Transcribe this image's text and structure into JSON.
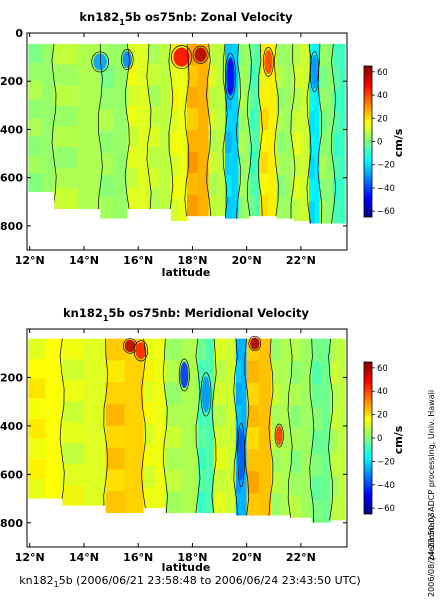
{
  "chart_data": [
    {
      "type": "heatmap",
      "title_main": "kn182",
      "title_sub": "1",
      "title_rest": "5b os75nb: Zonal Velocity",
      "xlabel": "latitude",
      "ylabel": "",
      "xlim": [
        11.9,
        23.7
      ],
      "ylim": [
        900,
        0
      ],
      "x_ticks": [
        12,
        14,
        16,
        18,
        20,
        22
      ],
      "x_tick_labels": [
        "12°N",
        "14°N",
        "16°N",
        "18°N",
        "20°N",
        "22°N"
      ],
      "y_ticks": [
        0,
        200,
        400,
        600,
        800
      ],
      "y_tick_labels": [
        "0",
        "200",
        "400",
        "600",
        "800"
      ],
      "colorbar": {
        "label": "cm/s",
        "range": [
          -65,
          65
        ],
        "ticks": [
          -60,
          -40,
          -20,
          0,
          20,
          40,
          60
        ],
        "tick_labels": [
          "−60",
          "−40",
          "−20",
          "0",
          "20",
          "40",
          "60"
        ]
      },
      "contour_levels": [
        0
      ],
      "bands": [
        {
          "lat_start": 11.95,
          "lat_end": 12.9,
          "value": 3,
          "depth_max": 660
        },
        {
          "lat_start": 12.9,
          "lat_end": 14.6,
          "value": 6,
          "depth_max": 730
        },
        {
          "lat_start": 14.6,
          "lat_end": 15.6,
          "value": 3,
          "depth_max": 770
        },
        {
          "lat_start": 15.6,
          "lat_end": 16.4,
          "value": 12,
          "depth_max": 730
        },
        {
          "lat_start": 16.4,
          "lat_end": 17.2,
          "value": 8,
          "depth_max": 730
        },
        {
          "lat_start": 17.2,
          "lat_end": 17.8,
          "value": 14,
          "depth_max": 780
        },
        {
          "lat_start": 17.8,
          "lat_end": 18.6,
          "value": 26,
          "depth_max": 760
        },
        {
          "lat_start": 18.6,
          "lat_end": 19.2,
          "value": 8,
          "depth_max": 760
        },
        {
          "lat_start": 19.2,
          "lat_end": 19.7,
          "value": -22,
          "depth_max": 770
        },
        {
          "lat_start": 19.7,
          "lat_end": 20.1,
          "value": 4,
          "depth_max": 770
        },
        {
          "lat_start": 20.1,
          "lat_end": 20.5,
          "value": -6,
          "depth_max": 760
        },
        {
          "lat_start": 20.5,
          "lat_end": 21.1,
          "value": 18,
          "depth_max": 760
        },
        {
          "lat_start": 21.1,
          "lat_end": 21.7,
          "value": 4,
          "depth_max": 770
        },
        {
          "lat_start": 21.7,
          "lat_end": 22.3,
          "value": 10,
          "depth_max": 780
        },
        {
          "lat_start": 22.3,
          "lat_end": 22.7,
          "value": -18,
          "depth_max": 790
        },
        {
          "lat_start": 22.7,
          "lat_end": 23.2,
          "value": 2,
          "depth_max": 790
        },
        {
          "lat_start": 23.2,
          "lat_end": 23.65,
          "value": -8,
          "depth_max": 790
        }
      ],
      "features": [
        {
          "lat": 14.6,
          "depth": 120,
          "value": -28,
          "lat_w": 0.5,
          "depth_h": 70
        },
        {
          "lat": 15.6,
          "depth": 110,
          "value": -32,
          "lat_w": 0.35,
          "depth_h": 70
        },
        {
          "lat": 17.6,
          "depth": 100,
          "value": 48,
          "lat_w": 0.6,
          "depth_h": 80
        },
        {
          "lat": 18.3,
          "depth": 90,
          "value": 58,
          "lat_w": 0.45,
          "depth_h": 60
        },
        {
          "lat": 19.4,
          "depth": 180,
          "value": -50,
          "lat_w": 0.3,
          "depth_h": 160
        },
        {
          "lat": 20.8,
          "depth": 120,
          "value": 40,
          "lat_w": 0.3,
          "depth_h": 100
        },
        {
          "lat": 22.5,
          "depth": 160,
          "value": -30,
          "lat_w": 0.25,
          "depth_h": 140
        }
      ]
    },
    {
      "type": "heatmap",
      "title_main": "kn182",
      "title_sub": "1",
      "title_rest": "5b os75nb: Meridional Velocity",
      "xlabel": "latitude",
      "ylabel": "",
      "xlim": [
        11.9,
        23.7
      ],
      "ylim": [
        900,
        0
      ],
      "x_ticks": [
        12,
        14,
        16,
        18,
        20,
        22
      ],
      "x_tick_labels": [
        "12°N",
        "14°N",
        "16°N",
        "18°N",
        "20°N",
        "22°N"
      ],
      "y_ticks": [
        200,
        400,
        600,
        800
      ],
      "y_tick_labels": [
        "200",
        "400",
        "600",
        "800"
      ],
      "colorbar": {
        "label": "cm/s",
        "range": [
          -65,
          65
        ],
        "ticks": [
          -60,
          -40,
          -20,
          0,
          20,
          40,
          60
        ],
        "tick_labels": [
          "−60",
          "−40",
          "−20",
          "0",
          "20",
          "40",
          "60"
        ]
      },
      "contour_levels": [
        0
      ],
      "bands": [
        {
          "lat_start": 11.95,
          "lat_end": 13.2,
          "value": 16,
          "depth_max": 700
        },
        {
          "lat_start": 13.2,
          "lat_end": 14.8,
          "value": 12,
          "depth_max": 730
        },
        {
          "lat_start": 14.8,
          "lat_end": 16.2,
          "value": 22,
          "depth_max": 760
        },
        {
          "lat_start": 16.2,
          "lat_end": 17.0,
          "value": 14,
          "depth_max": 740
        },
        {
          "lat_start": 17.0,
          "lat_end": 18.2,
          "value": 6,
          "depth_max": 760
        },
        {
          "lat_start": 18.2,
          "lat_end": 18.8,
          "value": -6,
          "depth_max": 760
        },
        {
          "lat_start": 18.8,
          "lat_end": 19.6,
          "value": 10,
          "depth_max": 760
        },
        {
          "lat_start": 19.6,
          "lat_end": 20.0,
          "value": -26,
          "depth_max": 770
        },
        {
          "lat_start": 20.0,
          "lat_end": 20.9,
          "value": 24,
          "depth_max": 770
        },
        {
          "lat_start": 20.9,
          "lat_end": 21.6,
          "value": 6,
          "depth_max": 770
        },
        {
          "lat_start": 21.6,
          "lat_end": 22.4,
          "value": 4,
          "depth_max": 780
        },
        {
          "lat_start": 22.4,
          "lat_end": 23.1,
          "value": -2,
          "depth_max": 800
        },
        {
          "lat_start": 23.1,
          "lat_end": 23.65,
          "value": 8,
          "depth_max": 790
        }
      ],
      "features": [
        {
          "lat": 15.7,
          "depth": 70,
          "value": 58,
          "lat_w": 0.4,
          "depth_h": 50
        },
        {
          "lat": 16.1,
          "depth": 90,
          "value": 44,
          "lat_w": 0.4,
          "depth_h": 70
        },
        {
          "lat": 17.7,
          "depth": 190,
          "value": -42,
          "lat_w": 0.3,
          "depth_h": 110
        },
        {
          "lat": 18.5,
          "depth": 270,
          "value": -30,
          "lat_w": 0.3,
          "depth_h": 150
        },
        {
          "lat": 20.3,
          "depth": 60,
          "value": 60,
          "lat_w": 0.35,
          "depth_h": 50
        },
        {
          "lat": 19.8,
          "depth": 520,
          "value": -38,
          "lat_w": 0.2,
          "depth_h": 220
        },
        {
          "lat": 21.2,
          "depth": 440,
          "value": 42,
          "lat_w": 0.25,
          "depth_h": 80
        }
      ]
    }
  ],
  "footer": {
    "main": "kn182",
    "sub": "1",
    "rest": "5b (2006/06/21 23:58:48 to 2006/06/24 23:43:50 UTC)"
  },
  "side_note": "preliminary ADCP processing,  Univ. Hawaii",
  "side_stamp": "2006/08/24 23:50:03",
  "colormap": [
    "#00007f",
    "#0000ff",
    "#007fff",
    "#00ffff",
    "#7fff7f",
    "#ffff00",
    "#ff7f00",
    "#ff0000",
    "#7f0000"
  ]
}
